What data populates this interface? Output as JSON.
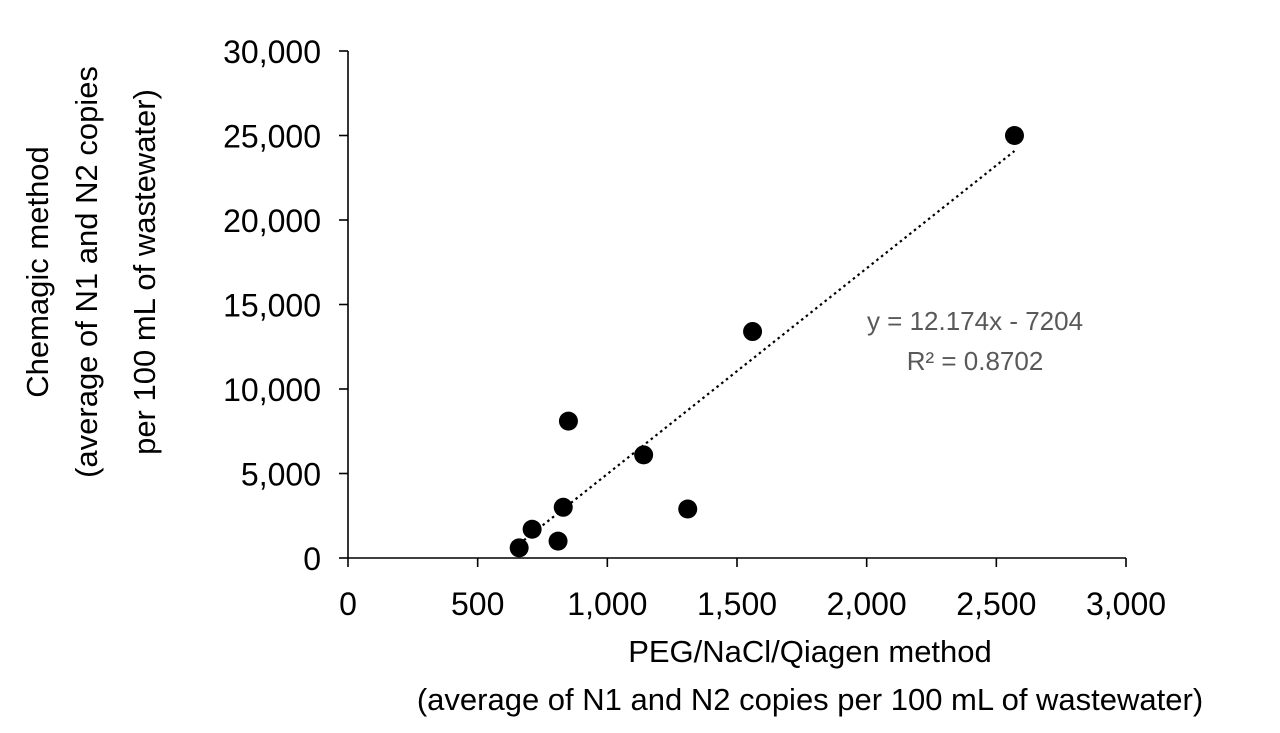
{
  "chart_data": {
    "type": "scatter",
    "title": "",
    "xlabel": [
      "PEG/NaCl/Qiagen method",
      "(average of N1 and N2 copies per 100 mL of wastewater)"
    ],
    "ylabel": [
      "Chemagic method",
      "(average of N1 and N2 copies",
      "per 100 mL of wastewater)"
    ],
    "xlim": [
      0,
      3000
    ],
    "ylim": [
      0,
      30000
    ],
    "x_ticks": [
      0,
      500,
      1000,
      1500,
      2000,
      2500,
      3000
    ],
    "x_tick_labels": [
      "0",
      "500",
      "1,000",
      "1,500",
      "2,000",
      "2,500",
      "3,000"
    ],
    "y_ticks": [
      0,
      5000,
      10000,
      15000,
      20000,
      25000,
      30000
    ],
    "y_tick_labels": [
      "0",
      "5,000",
      "10,000",
      "15,000",
      "20,000",
      "25,000",
      "30,000"
    ],
    "grid": false,
    "legend": "none",
    "marker_color": "#000000",
    "series": [
      {
        "points": [
          {
            "x": 660,
            "y": 600
          },
          {
            "x": 710,
            "y": 1700
          },
          {
            "x": 810,
            "y": 1000
          },
          {
            "x": 830,
            "y": 3000
          },
          {
            "x": 850,
            "y": 8100
          },
          {
            "x": 1140,
            "y": 6100
          },
          {
            "x": 1310,
            "y": 2900
          },
          {
            "x": 1560,
            "y": 13400
          },
          {
            "x": 2570,
            "y": 25000
          }
        ]
      }
    ],
    "trendline": {
      "style": "dotted",
      "color": "#000000",
      "slope": 12.174,
      "intercept": -7204,
      "x_range": [
        660,
        2570
      ],
      "equation_label": "y = 12.174x - 7204",
      "r2_label": "R² = 0.8702",
      "label_color": "#595959"
    }
  }
}
